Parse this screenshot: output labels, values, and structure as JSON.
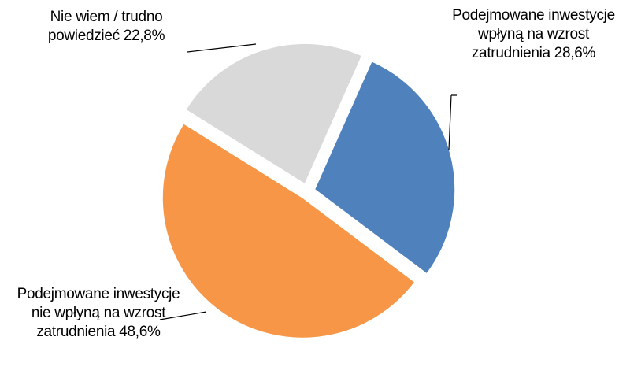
{
  "chart_data": {
    "type": "pie",
    "categories": [
      "Podejmowane inwestycje wpłyną na wzrost zatrudnienia",
      "Podejmowane inwestycje nie wpłyną na wzrost zatrudnienia",
      "Nie wiem / trudno powiedzieć"
    ],
    "values": [
      28.6,
      48.6,
      22.8
    ],
    "value_labels": [
      "28,6%",
      "48,6%",
      "22,8%"
    ],
    "colors": [
      "#4f81bd",
      "#f79646",
      "#d9d9d9"
    ]
  }
}
